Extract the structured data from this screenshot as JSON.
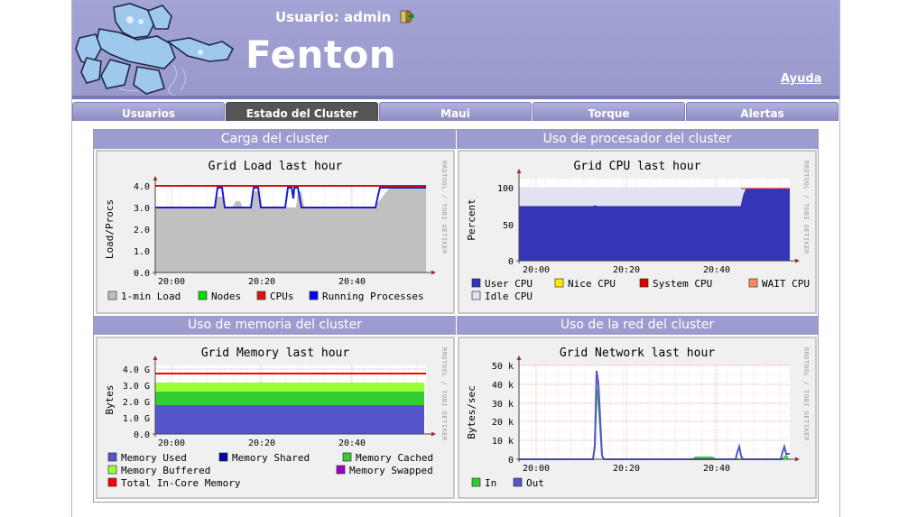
{
  "header": {
    "user_label": "Usuario: admin",
    "app_title": "Fenton",
    "help_label": "Ayuda"
  },
  "tabs": [
    {
      "label": "Usuarios",
      "active": false
    },
    {
      "label": "Estado del Cluster",
      "active": true
    },
    {
      "label": "Maui",
      "active": false
    },
    {
      "label": "Torque",
      "active": false
    },
    {
      "label": "Alertas",
      "active": false
    }
  ],
  "sections": {
    "load": "Carga del cluster",
    "cpu": "Uso de procesador del cluster",
    "memory": "Uso de memoria del cluster",
    "network": "Uso de la red del cluster"
  },
  "watermark": "RRDTOOL / TOBI OETIKER",
  "chart_data": [
    {
      "type": "area",
      "title": "Grid Load last hour",
      "ylabel": "Load/Procs",
      "x_ticks": [
        "20:00",
        "20:20",
        "20:40"
      ],
      "y_ticks": [
        "0.0",
        "1.0",
        "2.0",
        "3.0",
        "4.0"
      ],
      "ylim": [
        0,
        4
      ],
      "legend": [
        {
          "name": "1-min Load",
          "color": "#c0c0c0"
        },
        {
          "name": "Nodes",
          "color": "#00e000"
        },
        {
          "name": "CPUs",
          "color": "#e01010"
        },
        {
          "name": "Running Processes",
          "color": "#0000ff"
        }
      ]
    },
    {
      "type": "area",
      "title": "Grid CPU last hour",
      "ylabel": "Percent",
      "x_ticks": [
        "20:00",
        "20:20",
        "20:40"
      ],
      "y_ticks": [
        "0",
        "50",
        "100"
      ],
      "ylim": [
        0,
        110
      ],
      "legend": [
        {
          "name": "User CPU",
          "color": "#3333bb"
        },
        {
          "name": "Nice CPU",
          "color": "#ffea00"
        },
        {
          "name": "System CPU",
          "color": "#dd0000"
        },
        {
          "name": "WAIT CPU",
          "color": "#ff8a60"
        },
        {
          "name": "Idle CPU",
          "color": "#e2e2f2"
        }
      ]
    },
    {
      "type": "area",
      "title": "Grid Memory last hour",
      "ylabel": "Bytes",
      "x_ticks": [
        "20:00",
        "20:20",
        "20:40"
      ],
      "y_ticks": [
        "0.0",
        "1.0 G",
        "2.0 G",
        "3.0 G",
        "4.0 G"
      ],
      "ylim": [
        0,
        4.2
      ],
      "legend": [
        {
          "name": "Memory Used",
          "color": "#5555cc"
        },
        {
          "name": "Memory Shared",
          "color": "#0000aa"
        },
        {
          "name": "Memory Cached",
          "color": "#33cc33"
        },
        {
          "name": "Memory Buffered",
          "color": "#99ff33"
        },
        {
          "name": "Memory Swapped",
          "color": "#9900cc"
        },
        {
          "name": "Total In-Core Memory",
          "color": "#ff0000"
        }
      ]
    },
    {
      "type": "line",
      "title": "Grid Network last hour",
      "ylabel": "Bytes/sec",
      "x_ticks": [
        "20:00",
        "20:20",
        "20:40"
      ],
      "y_ticks": [
        "0",
        "10 k",
        "20 k",
        "30 k",
        "40 k",
        "50 k"
      ],
      "ylim": [
        0,
        52000
      ],
      "legend": [
        {
          "name": "In",
          "color": "#33cc33"
        },
        {
          "name": "Out",
          "color": "#5555cc"
        }
      ]
    }
  ]
}
